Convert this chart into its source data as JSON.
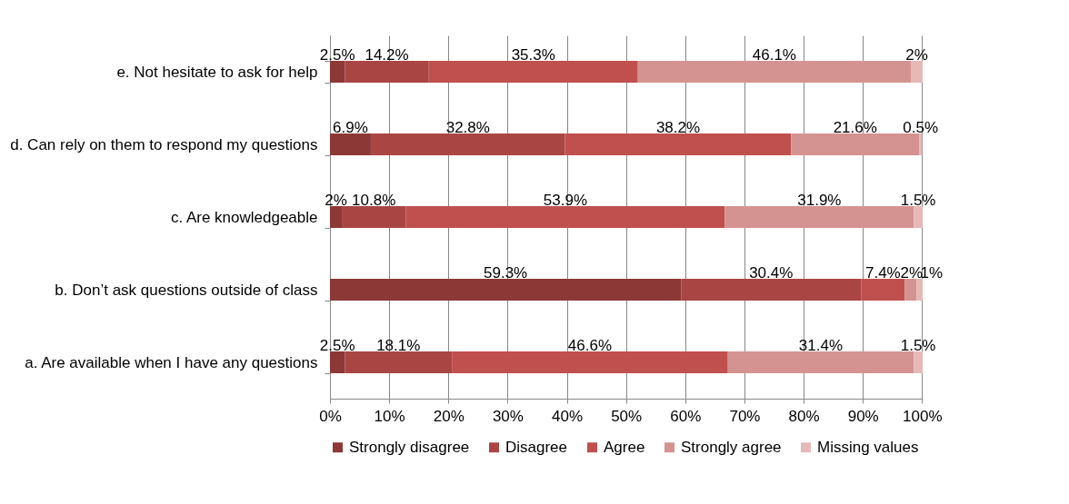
{
  "chart_data": {
    "type": "bar",
    "orientation": "horizontal",
    "stacked": true,
    "categories": [
      "e. Not hesitate to ask for help",
      "d. Can rely on them to respond my questions",
      "c. Are knowledgeable",
      "b. Don’t ask questions outside of class",
      "a. Are available when I have any questions"
    ],
    "series": [
      {
        "name": "Strongly disagree",
        "color": "#8c3836",
        "values": [
          2.5,
          6.9,
          2,
          59.3,
          2.5
        ],
        "value_labels": [
          "2.5%",
          "6.9%",
          "2%",
          "59.3%",
          "2.5%"
        ]
      },
      {
        "name": "Disagree",
        "color": "#a94644",
        "values": [
          14.2,
          32.8,
          10.8,
          30.4,
          18.1
        ],
        "value_labels": [
          "14.2%",
          "32.8%",
          "10.8%",
          "30.4%",
          "18.1%"
        ]
      },
      {
        "name": "Agree",
        "color": "#c0504d",
        "values": [
          35.3,
          38.2,
          53.9,
          7.4,
          46.6
        ],
        "value_labels": [
          "35.3%",
          "38.2%",
          "53.9%",
          "7.4%",
          "46.6%"
        ]
      },
      {
        "name": "Strongly agree",
        "color": "#d49391",
        "values": [
          46.1,
          21.6,
          31.9,
          2,
          31.4
        ],
        "value_labels": [
          "46.1%",
          "21.6%",
          "31.9%",
          "2%",
          "31.4%"
        ]
      },
      {
        "name": "Missing values",
        "color": "#e6b9b8",
        "values": [
          2,
          0.5,
          1.5,
          1,
          1.5
        ],
        "value_labels": [
          "2%",
          "0.5%",
          "1.5%",
          "1%",
          "1.5%"
        ]
      }
    ],
    "xlim": [
      0,
      100.1
    ],
    "xticks": [
      {
        "value": 0,
        "label": "0%"
      },
      {
        "value": 10,
        "label": "10%"
      },
      {
        "value": 20,
        "label": "20%"
      },
      {
        "value": 30,
        "label": "30%"
      },
      {
        "value": 40,
        "label": "40%"
      },
      {
        "value": 50,
        "label": "50%"
      },
      {
        "value": 60,
        "label": "60%"
      },
      {
        "value": 70,
        "label": "70%"
      },
      {
        "value": 80,
        "label": "80%"
      },
      {
        "value": 90,
        "label": "90%"
      },
      {
        "value": 100,
        "label": "100%"
      }
    ],
    "grid": "x",
    "legend": "bottom"
  }
}
